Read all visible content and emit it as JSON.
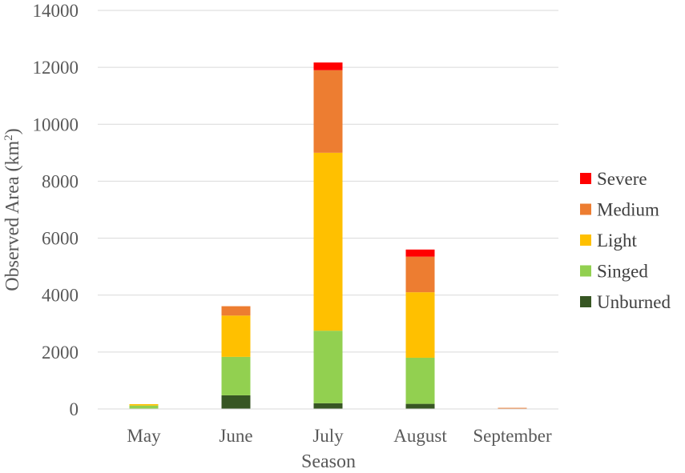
{
  "chart_data": {
    "type": "bar",
    "stacked": true,
    "title": "",
    "xlabel": "Season",
    "ylabel": "Observed Area (km²)",
    "ylabel_base": "Observed Area (km",
    "ylabel_sup": "2",
    "ylabel_close": ")",
    "ylim": [
      0,
      14000
    ],
    "yticks": [
      "0",
      "2000",
      "4000",
      "6000",
      "8000",
      "10000",
      "12000",
      "14000"
    ],
    "grid": true,
    "legend_position": "right",
    "categories": [
      "May",
      "June",
      "July",
      "August",
      "September"
    ],
    "series": [
      {
        "name": "Unburned",
        "color": "#375623",
        "values": [
          0,
          480,
          200,
          180,
          0
        ]
      },
      {
        "name": "Singed",
        "color": "#92D050",
        "values": [
          120,
          1350,
          2550,
          1620,
          0
        ]
      },
      {
        "name": "Light",
        "color": "#FFC000",
        "values": [
          50,
          1450,
          6250,
          2300,
          0
        ]
      },
      {
        "name": "Medium",
        "color": "#ED7D31",
        "values": [
          0,
          330,
          2900,
          1250,
          40
        ]
      },
      {
        "name": "Severe",
        "color": "#FF0000",
        "values": [
          0,
          0,
          270,
          250,
          0
        ]
      }
    ],
    "legend_order": [
      "Severe",
      "Medium",
      "Light",
      "Singed",
      "Unburned"
    ]
  }
}
